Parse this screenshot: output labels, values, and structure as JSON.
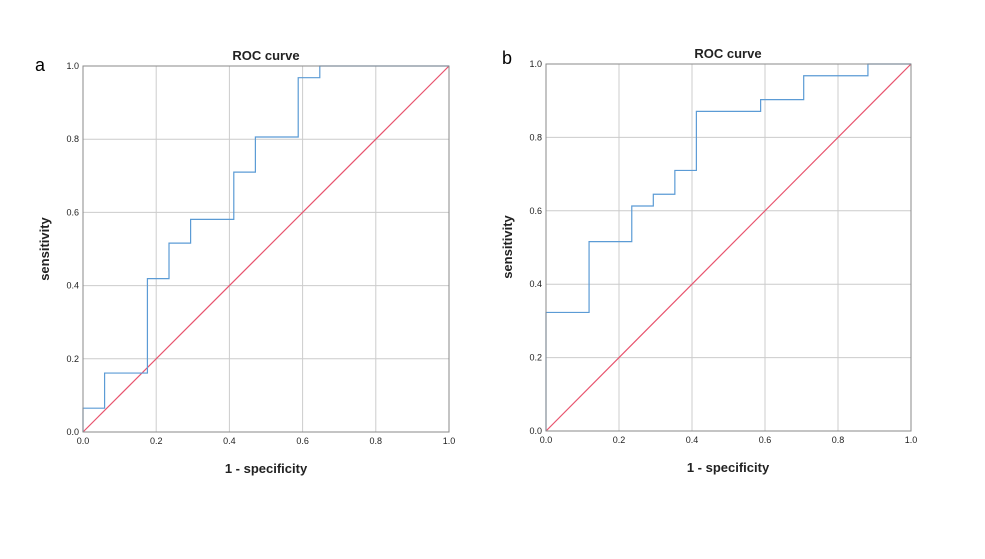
{
  "chart_data": [
    {
      "panel": "a",
      "type": "line",
      "title": "ROC curve",
      "xlabel": "1 - specificity",
      "ylabel": "sensitivity",
      "xlim": [
        0,
        1
      ],
      "ylim": [
        0,
        1
      ],
      "xticks": [
        "0.0",
        "0.2",
        "0.4",
        "0.6",
        "0.8",
        "1.0"
      ],
      "yticks": [
        "0.0",
        "0.2",
        "0.4",
        "0.6",
        "0.8",
        "1.0"
      ],
      "grid": true,
      "series": [
        {
          "kind": "step",
          "color": "#5b9bd5",
          "x": [
            0,
            0,
            0.059,
            0.059,
            0.176,
            0.176,
            0.235,
            0.235,
            0.294,
            0.294,
            0.412,
            0.412,
            0.471,
            0.471,
            0.588,
            0.588,
            0.647,
            0.647,
            1.0
          ],
          "y": [
            0,
            0.065,
            0.065,
            0.161,
            0.161,
            0.419,
            0.419,
            0.516,
            0.516,
            0.581,
            0.581,
            0.71,
            0.71,
            0.806,
            0.806,
            0.968,
            0.968,
            1.0,
            1.0
          ]
        },
        {
          "kind": "reference",
          "color": "#e8546e",
          "x": [
            0,
            1
          ],
          "y": [
            0,
            1
          ]
        }
      ]
    },
    {
      "panel": "b",
      "type": "line",
      "title": "ROC curve",
      "xlabel": "1 - specificity",
      "ylabel": "sensitivity",
      "xlim": [
        0,
        1
      ],
      "ylim": [
        0,
        1
      ],
      "xticks": [
        "0.0",
        "0.2",
        "0.4",
        "0.6",
        "0.8",
        "1.0"
      ],
      "yticks": [
        "0.0",
        "0.2",
        "0.4",
        "0.6",
        "0.8",
        "1.0"
      ],
      "grid": true,
      "series": [
        {
          "kind": "step",
          "color": "#5b9bd5",
          "x": [
            0,
            0,
            0.118,
            0.118,
            0.235,
            0.235,
            0.294,
            0.294,
            0.353,
            0.353,
            0.412,
            0.412,
            0.588,
            0.588,
            0.706,
            0.706,
            0.882,
            0.882,
            1.0
          ],
          "y": [
            0,
            0.323,
            0.323,
            0.516,
            0.516,
            0.613,
            0.613,
            0.645,
            0.645,
            0.71,
            0.71,
            0.871,
            0.871,
            0.903,
            0.903,
            0.968,
            0.968,
            1.0,
            1.0
          ]
        },
        {
          "kind": "reference",
          "color": "#e8546e",
          "x": [
            0,
            1
          ],
          "y": [
            0,
            1
          ]
        }
      ]
    }
  ]
}
